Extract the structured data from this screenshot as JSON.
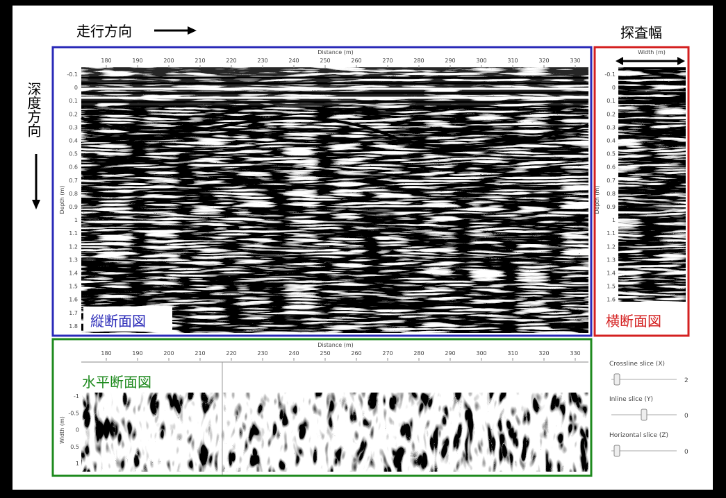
{
  "annotations": {
    "travel_direction": "走行方向",
    "survey_width": "探査幅",
    "depth_direction": "深度方向"
  },
  "longitudinal": {
    "label": "縦断面図",
    "x_title": "Distance (m)",
    "x_ticks": [
      "180",
      "190",
      "200",
      "210",
      "220",
      "230",
      "240",
      "250",
      "260",
      "270",
      "280",
      "290",
      "300",
      "310",
      "320",
      "330"
    ],
    "y_title": "Depth (m)",
    "y_ticks": [
      "-0.1",
      "0",
      "0.1",
      "0.2",
      "0.3",
      "0.4",
      "0.5",
      "0.6",
      "0.7",
      "0.8",
      "0.9",
      "1",
      "1.1",
      "1.2",
      "1.3",
      "1.4",
      "1.5",
      "1.6",
      "1.7",
      "1.8"
    ]
  },
  "transverse": {
    "label": "横断面図",
    "x_title": "Width (m)",
    "y_title": "Depth (m)",
    "y_ticks": [
      "-0.1",
      "0",
      "0.1",
      "0.2",
      "0.3",
      "0.4",
      "0.5",
      "0.6",
      "0.7",
      "0.8",
      "0.9",
      "1",
      "1.1",
      "1.2",
      "1.3",
      "1.4",
      "1.5",
      "1.6"
    ]
  },
  "horizontal": {
    "label": "水平断面図",
    "x_title": "Distance (m)",
    "x_ticks": [
      "180",
      "190",
      "200",
      "210",
      "220",
      "230",
      "240",
      "250",
      "260",
      "270",
      "280",
      "290",
      "300",
      "310",
      "320",
      "330"
    ],
    "y_title": "Width (m)",
    "y_ticks": [
      "-1",
      "-0.5",
      "0",
      "0.5",
      "1"
    ]
  },
  "controls": [
    {
      "label": "Crossline slice (X)",
      "value": "2"
    },
    {
      "label": "Inline slice (Y)",
      "value": "0"
    },
    {
      "label": "Horizontal slice (Z)",
      "value": "0"
    }
  ]
}
